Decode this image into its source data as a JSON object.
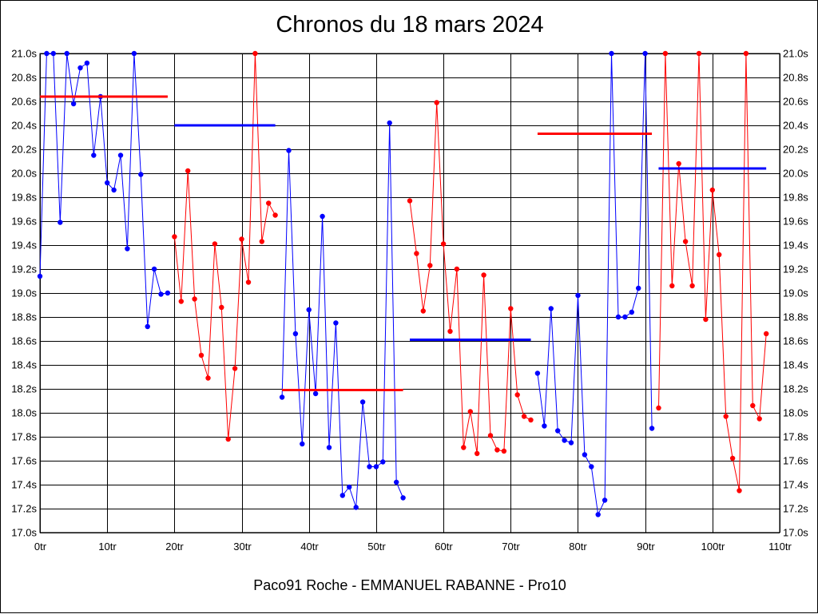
{
  "chart_data": {
    "type": "line",
    "title": "Chronos du 18 mars 2024",
    "subtitle": "Paco91 Roche - EMMANUEL RABANNE - Pro10",
    "xlabel": "",
    "ylabel": "",
    "xlim": [
      0,
      110
    ],
    "ylim": [
      17.0,
      21.0
    ],
    "grid": true,
    "x_ticks": [
      "0tr",
      "10tr",
      "20tr",
      "30tr",
      "40tr",
      "50tr",
      "60tr",
      "70tr",
      "80tr",
      "90tr",
      "100tr",
      "110tr"
    ],
    "y_ticks": [
      "17.0s",
      "17.2s",
      "17.4s",
      "17.6s",
      "17.8s",
      "18.0s",
      "18.2s",
      "18.4s",
      "18.6s",
      "18.8s",
      "19.0s",
      "19.2s",
      "19.4s",
      "19.6s",
      "19.8s",
      "20.0s",
      "20.2s",
      "20.4s",
      "20.6s",
      "20.8s",
      "21.0s"
    ],
    "series": [
      {
        "color": "#0000ff",
        "x": [
          0,
          1,
          2,
          3,
          4,
          5,
          6,
          7,
          8,
          9,
          10,
          11,
          12,
          13,
          14,
          15,
          16,
          17,
          18,
          19
        ],
        "values": [
          19.14,
          21.0,
          21.0,
          19.59,
          21.0,
          20.58,
          20.88,
          20.92,
          20.15,
          20.64,
          19.92,
          19.86,
          20.15,
          19.37,
          21.0,
          19.99,
          18.72,
          19.2,
          18.99,
          19.0
        ]
      },
      {
        "color": "#ff0000",
        "x": [
          20,
          21,
          22,
          23,
          24,
          25,
          26,
          27,
          28,
          29,
          30,
          31,
          32,
          33,
          34,
          35
        ],
        "values": [
          19.47,
          18.93,
          20.02,
          18.95,
          18.48,
          18.29,
          19.41,
          18.88,
          17.78,
          18.37,
          19.45,
          19.09,
          21.0,
          19.43,
          19.75,
          19.65
        ]
      },
      {
        "color": "#0000ff",
        "x": [
          36,
          37,
          38,
          39,
          40,
          41,
          42,
          43,
          44,
          45,
          46,
          47,
          48,
          49,
          50,
          51,
          52,
          53,
          54
        ],
        "values": [
          18.13,
          20.19,
          18.66,
          17.74,
          18.86,
          18.16,
          19.64,
          17.71,
          18.75,
          17.31,
          17.38,
          17.21,
          18.09,
          17.55,
          17.55,
          17.59,
          20.42,
          17.42,
          17.29
        ]
      },
      {
        "color": "#ff0000",
        "x": [
          55,
          56,
          57,
          58,
          59,
          60,
          61,
          62,
          63,
          64,
          65,
          66,
          67,
          68,
          69,
          70,
          71,
          72,
          73
        ],
        "values": [
          19.77,
          19.33,
          18.85,
          19.23,
          20.59,
          19.41,
          18.68,
          19.2,
          17.71,
          18.01,
          17.66,
          19.15,
          17.81,
          17.69,
          17.68,
          18.87,
          18.15,
          17.97,
          17.94
        ]
      },
      {
        "color": "#0000ff",
        "x": [
          74,
          75,
          76,
          77,
          78,
          79,
          80,
          81,
          82,
          83,
          84,
          85,
          86,
          87,
          88,
          89,
          90,
          91
        ],
        "values": [
          18.33,
          17.89,
          18.87,
          17.85,
          17.77,
          17.75,
          18.98,
          17.65,
          17.55,
          17.15,
          17.27,
          21.0,
          18.8,
          18.8,
          18.84,
          19.04,
          21.0,
          17.87
        ]
      },
      {
        "color": "#ff0000",
        "x": [
          92,
          93,
          94,
          95,
          96,
          97,
          98,
          99,
          100,
          101,
          102,
          103,
          104,
          105,
          106,
          107,
          108
        ],
        "values": [
          18.04,
          21.0,
          19.06,
          20.08,
          19.43,
          19.06,
          21.0,
          18.78,
          19.86,
          19.32,
          17.97,
          17.62,
          17.35,
          21.0,
          18.06,
          17.95,
          18.66
        ]
      }
    ],
    "averages": [
      {
        "color": "#ff0000",
        "x": [
          0,
          19
        ],
        "value": 20.64
      },
      {
        "color": "#0000ff",
        "x": [
          20,
          35
        ],
        "value": 20.4
      },
      {
        "color": "#ff0000",
        "x": [
          36,
          54
        ],
        "value": 18.19
      },
      {
        "color": "#0000ff",
        "x": [
          55,
          73
        ],
        "value": 18.61
      },
      {
        "color": "#ff0000",
        "x": [
          74,
          91
        ],
        "value": 20.33
      },
      {
        "color": "#0000ff",
        "x": [
          92,
          108
        ],
        "value": 20.04
      }
    ]
  }
}
